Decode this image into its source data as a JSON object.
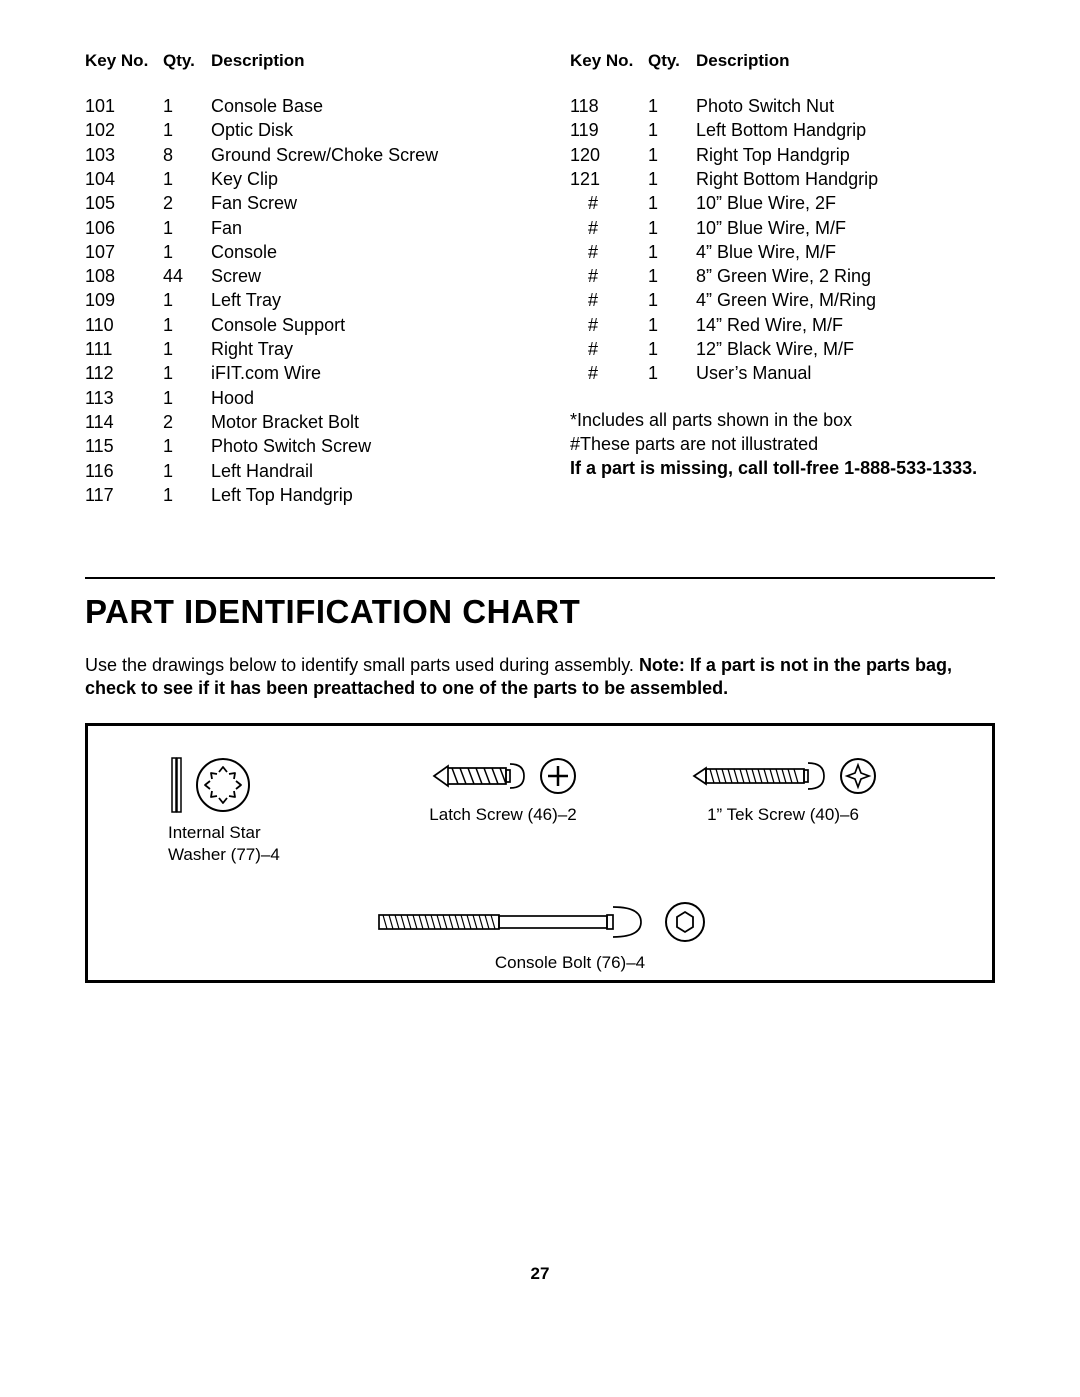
{
  "parts_list": {
    "header_key": "Key No.",
    "header_qty": "Qty.",
    "header_desc": "Description",
    "left": [
      {
        "k": "101",
        "q": "1",
        "d": "Console Base"
      },
      {
        "k": "102",
        "q": "1",
        "d": "Optic Disk"
      },
      {
        "k": "103",
        "q": "8",
        "d": "Ground Screw/Choke Screw"
      },
      {
        "k": "104",
        "q": "1",
        "d": "Key Clip"
      },
      {
        "k": "105",
        "q": "2",
        "d": "Fan Screw"
      },
      {
        "k": "106",
        "q": "1",
        "d": "Fan"
      },
      {
        "k": "107",
        "q": "1",
        "d": "Console"
      },
      {
        "k": "108",
        "q": "44",
        "d": "Screw"
      },
      {
        "k": "109",
        "q": "1",
        "d": "Left Tray"
      },
      {
        "k": "110",
        "q": "1",
        "d": "Console Support"
      },
      {
        "k": "111",
        "q": "1",
        "d": "Right Tray"
      },
      {
        "k": "112",
        "q": "1",
        "d": "iFIT.com Wire"
      },
      {
        "k": "113",
        "q": "1",
        "d": "Hood"
      },
      {
        "k": "114",
        "q": "2",
        "d": "Motor Bracket Bolt"
      },
      {
        "k": "115",
        "q": "1",
        "d": "Photo Switch Screw"
      },
      {
        "k": "116",
        "q": "1",
        "d": "Left Handrail"
      },
      {
        "k": "117",
        "q": "1",
        "d": "Left Top Handgrip"
      }
    ],
    "right": [
      {
        "k": "118",
        "q": "1",
        "d": "Photo Switch Nut"
      },
      {
        "k": "119",
        "q": "1",
        "d": "Left Bottom Handgrip"
      },
      {
        "k": "120",
        "q": "1",
        "d": "Right Top Handgrip"
      },
      {
        "k": "121",
        "q": "1",
        "d": "Right Bottom Handgrip"
      },
      {
        "k": "#",
        "q": "1",
        "d": "10” Blue Wire, 2F"
      },
      {
        "k": "#",
        "q": "1",
        "d": "10” Blue Wire, M/F"
      },
      {
        "k": "#",
        "q": "1",
        "d": "4” Blue Wire, M/F"
      },
      {
        "k": "#",
        "q": "1",
        "d": "8” Green Wire, 2 Ring"
      },
      {
        "k": "#",
        "q": "1",
        "d": "4” Green Wire, M/Ring"
      },
      {
        "k": "#",
        "q": "1",
        "d": "14” Red Wire, M/F"
      },
      {
        "k": "#",
        "q": "1",
        "d": "12” Black Wire, M/F"
      },
      {
        "k": "#",
        "q": "1",
        "d": "User’s Manual"
      }
    ]
  },
  "notes": {
    "line1": "*Includes all parts shown in the box",
    "line2": "#These parts are not illustrated",
    "line3": "If a part is missing, call toll-free 1-888-533-1333."
  },
  "chart_title": "PART IDENTIFICATION CHART",
  "instruction_pre": "Use the drawings below to identify small parts used during assembly. ",
  "instruction_bold": "Note: If a part is not in the parts bag, check to see if it has been preattached to one of the parts to be assembled.",
  "id_parts": {
    "star_washer": "Internal Star Washer (77)–4",
    "latch_screw": "Latch Screw (46)–2",
    "tek_screw": "1” Tek Screw (40)–6",
    "console_bolt": "Console Bolt (76)–4"
  },
  "page_number": "27"
}
